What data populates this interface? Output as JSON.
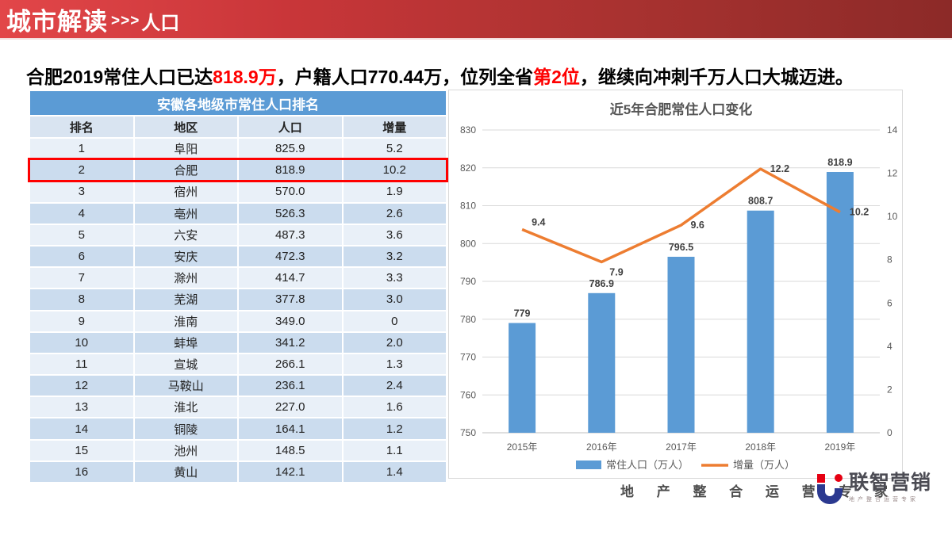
{
  "banner": {
    "title_main": "城市解读",
    "title_arrows": ">>>",
    "title_sub": "人口"
  },
  "headline": {
    "segments": [
      {
        "text": "合肥2019常住人口已达",
        "red": false
      },
      {
        "text": "818.9万",
        "red": true
      },
      {
        "text": "，户籍人口770.44万，位列全省",
        "red": false
      },
      {
        "text": "第2位",
        "red": true
      },
      {
        "text": "，继续向冲刺千万人口大城迈进。",
        "red": false
      }
    ]
  },
  "table": {
    "title": "安徽各地级市常住人口排名",
    "columns": [
      "排名",
      "地区",
      "人口",
      "增量"
    ],
    "rows": [
      [
        "1",
        "阜阳",
        "825.9",
        "5.2"
      ],
      [
        "2",
        "合肥",
        "818.9",
        "10.2"
      ],
      [
        "3",
        "宿州",
        "570.0",
        "1.9"
      ],
      [
        "4",
        "亳州",
        "526.3",
        "2.6"
      ],
      [
        "5",
        "六安",
        "487.3",
        "3.6"
      ],
      [
        "6",
        "安庆",
        "472.3",
        "3.2"
      ],
      [
        "7",
        "滁州",
        "414.7",
        "3.3"
      ],
      [
        "8",
        "芜湖",
        "377.8",
        "3.0"
      ],
      [
        "9",
        "淮南",
        "349.0",
        "0"
      ],
      [
        "10",
        "蚌埠",
        "341.2",
        "2.0"
      ],
      [
        "11",
        "宣城",
        "266.1",
        "1.3"
      ],
      [
        "12",
        "马鞍山",
        "236.1",
        "2.4"
      ],
      [
        "13",
        "淮北",
        "227.0",
        "1.6"
      ],
      [
        "14",
        "铜陵",
        "164.1",
        "1.2"
      ],
      [
        "15",
        "池州",
        "148.5",
        "1.1"
      ],
      [
        "16",
        "黄山",
        "142.1",
        "1.4"
      ]
    ],
    "highlighted_row_index": 1,
    "highlight_color": "#fe0000"
  },
  "chart_data": {
    "type": "bar",
    "title": "近5年合肥常住人口变化",
    "categories": [
      "2015年",
      "2016年",
      "2017年",
      "2018年",
      "2019年"
    ],
    "series": [
      {
        "name": "常住人口（万人）",
        "type": "bar",
        "axis": "left",
        "color": "#5b9bd5",
        "values": [
          779,
          786.9,
          796.5,
          808.7,
          818.9
        ]
      },
      {
        "name": "增量（万人）",
        "type": "line",
        "axis": "right",
        "color": "#ed7d31",
        "values": [
          9.4,
          7.9,
          9.6,
          12.2,
          10.2
        ]
      }
    ],
    "left_axis": {
      "min": 750,
      "max": 830,
      "step": 10,
      "ticks": [
        "750",
        "760",
        "770",
        "780",
        "790",
        "800",
        "810",
        "820",
        "830"
      ]
    },
    "right_axis": {
      "min": 0,
      "max": 14,
      "step": 2,
      "ticks": [
        "0",
        "2",
        "4",
        "6",
        "8",
        "10",
        "12",
        "14"
      ]
    },
    "grid": true,
    "legend_position": "bottom"
  },
  "footer": {
    "tagline": "地 产 整 合 运 营 专 家",
    "logo_name": "联智营销",
    "logo_sub": "地产整合运营专家"
  },
  "colors": {
    "banner_red_left": "#e24649",
    "banner_red_right": "#8c2a28",
    "accent_red": "#fe0000",
    "table_blue": "#5b9bd5",
    "row_light": "#e9f0f8",
    "row_dark": "#cbdcee",
    "bar_blue": "#5b9bd5",
    "line_orange": "#ed7d31"
  }
}
